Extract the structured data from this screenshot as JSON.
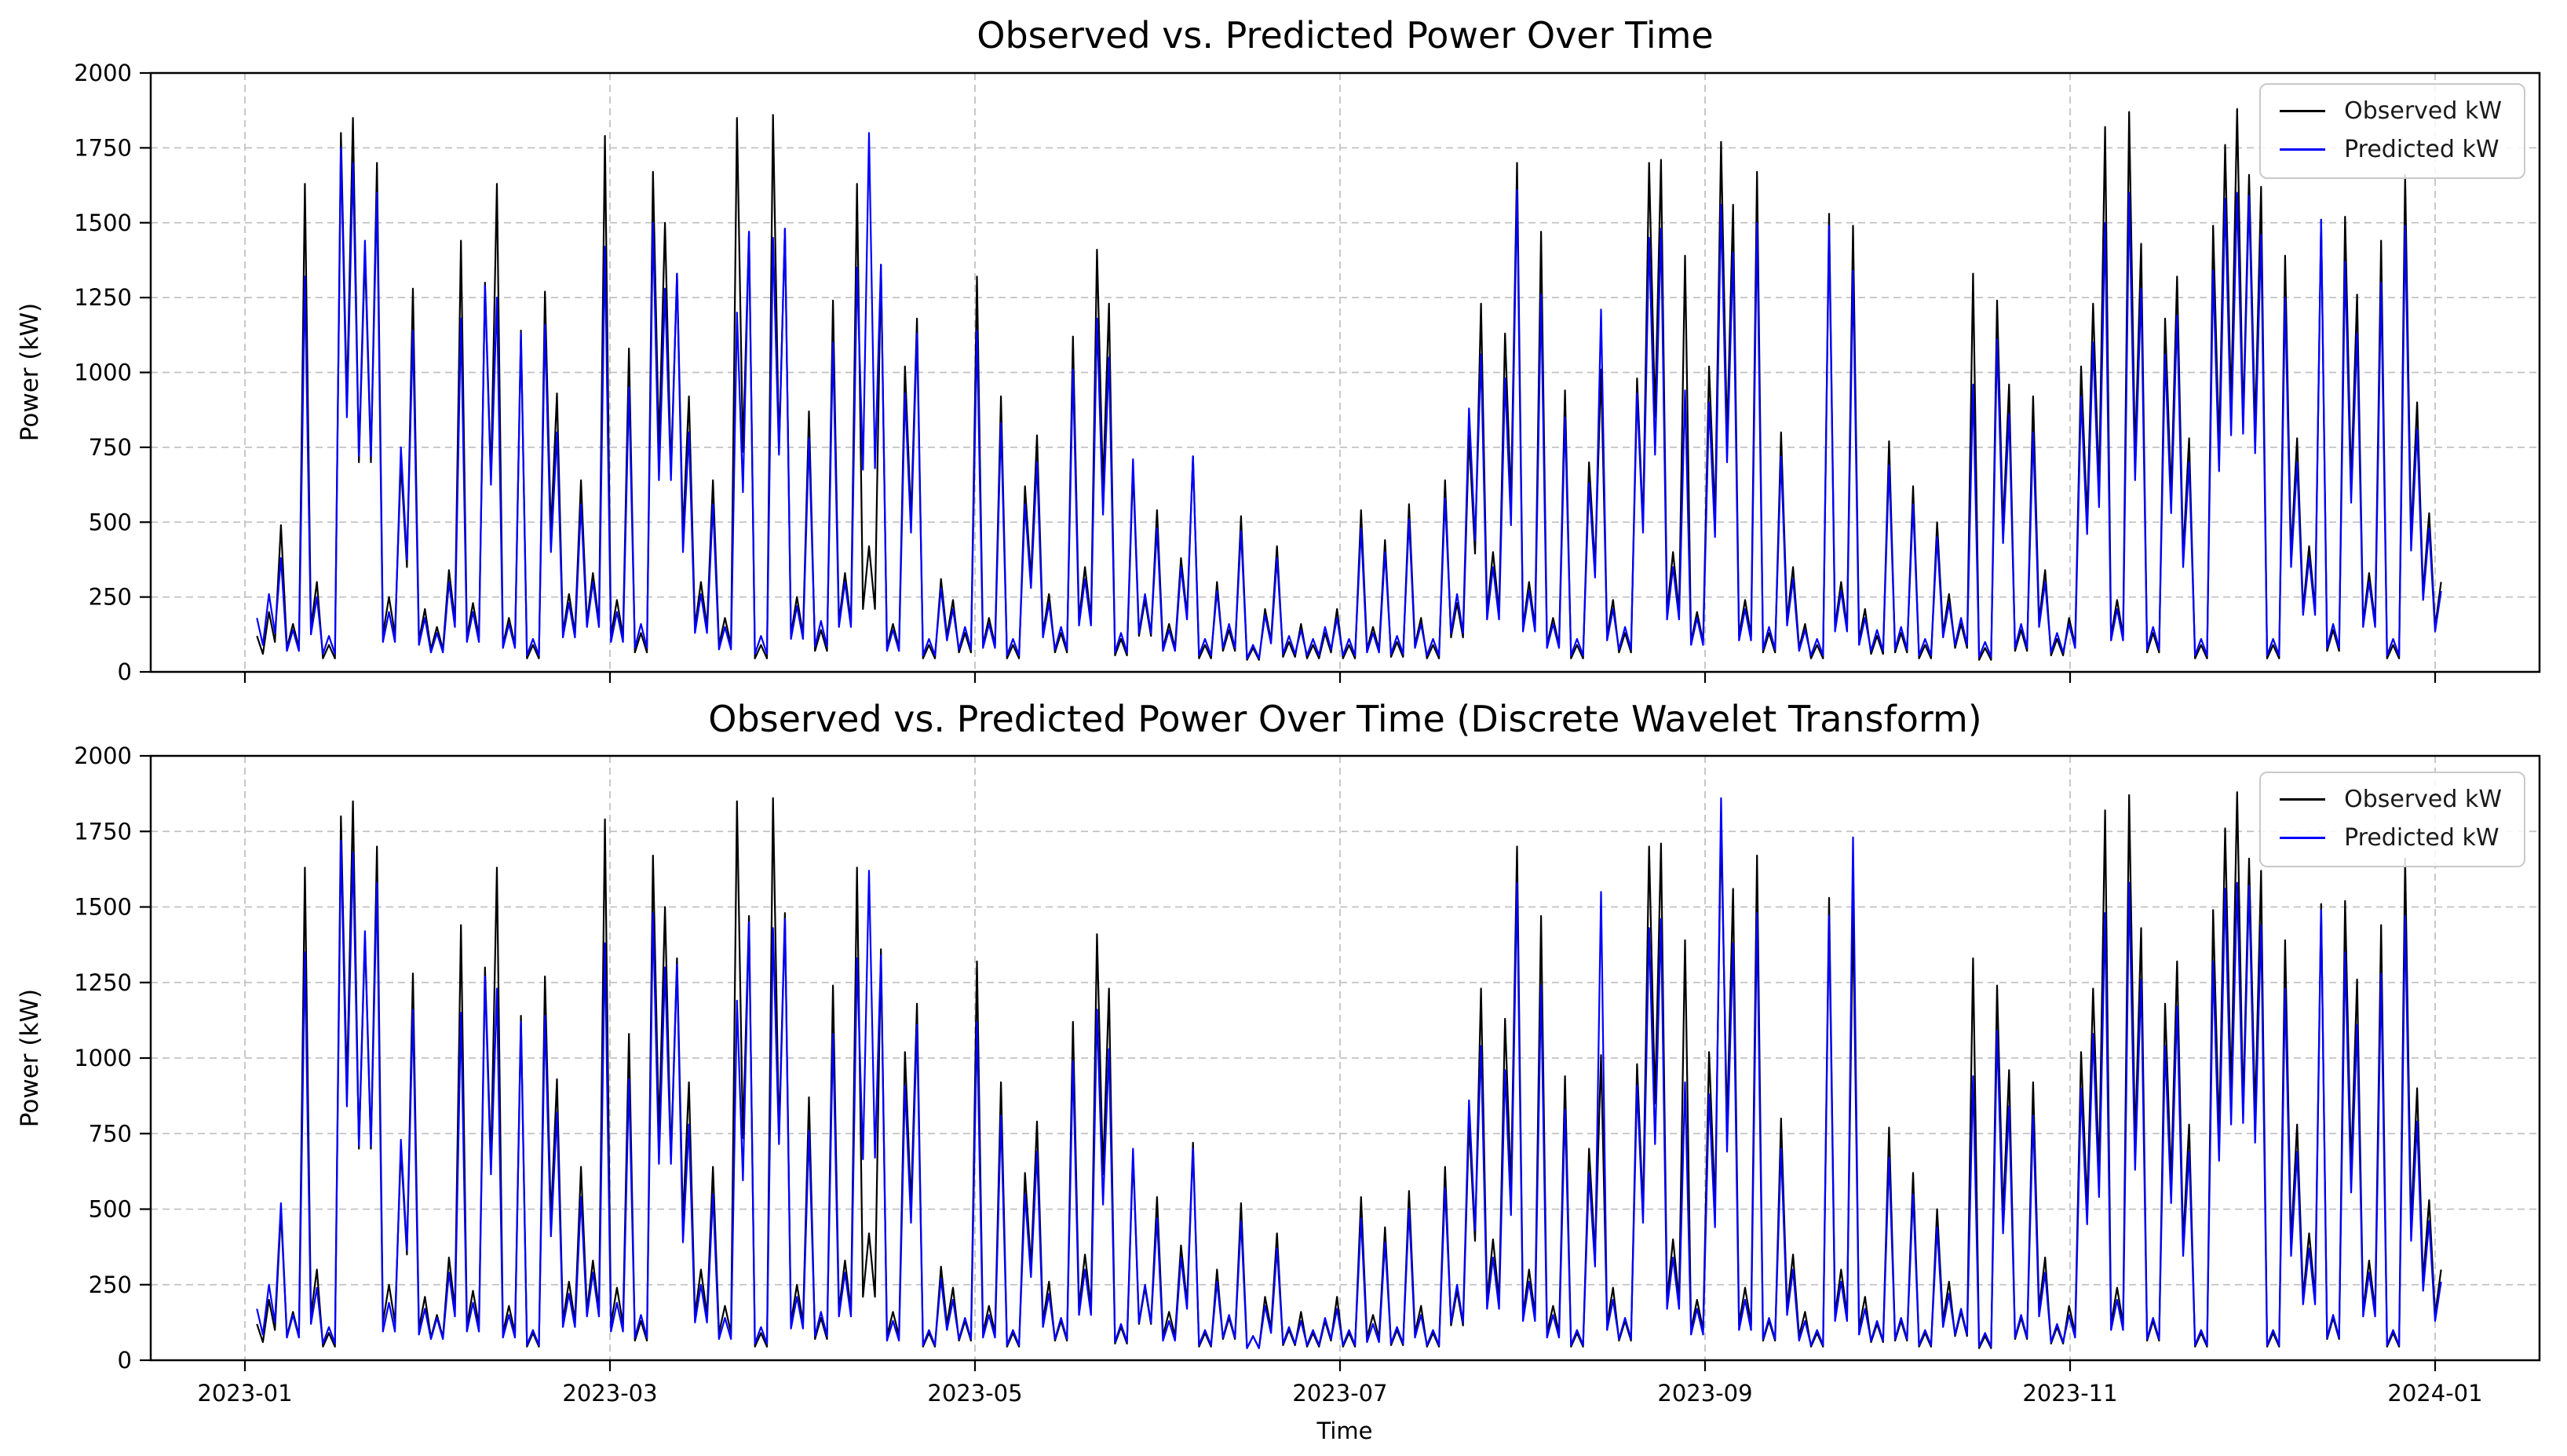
{
  "colors": {
    "background": "#ffffff",
    "observed": "#000000",
    "predicted": "#0000ff",
    "grid": "#c2c2c2",
    "axis": "#000000",
    "legend_border": "#c9c9c9"
  },
  "chart_data": [
    {
      "type": "line",
      "title": "Observed vs. Predicted Power Over Time",
      "ylabel": "Power (kW)",
      "xlabel": "",
      "ylim": [
        0,
        2000
      ],
      "y_ticks": [
        0,
        250,
        500,
        750,
        1000,
        1250,
        1500,
        1750,
        2000
      ],
      "x_tick_labels": [
        "2023-01",
        "2023-03",
        "2023-05",
        "2023-07",
        "2023-09",
        "2023-11",
        "2024-01"
      ],
      "x_tick_labels_visible": false,
      "grid": true,
      "legend_position": "upper right",
      "start_day": 2,
      "sample_interval_days": 2,
      "series": [
        {
          "name": "Observed kW",
          "color": "#000000",
          "values": [
            120,
            200,
            490,
            160,
            1630,
            300,
            90,
            1800,
            1850,
            1400,
            1700,
            250,
            700,
            1280,
            210,
            150,
            340,
            1440,
            230,
            1300,
            1630,
            180,
            1140,
            90,
            1270,
            930,
            260,
            640,
            330,
            1790,
            240,
            1080,
            130,
            1670,
            1500,
            1330,
            920,
            300,
            640,
            180,
            1850,
            1470,
            90,
            1860,
            1480,
            250,
            870,
            140,
            1240,
            330,
            1630,
            420,
            1360,
            160,
            1020,
            1180,
            90,
            310,
            240,
            130,
            1320,
            180,
            920,
            90,
            620,
            790,
            260,
            130,
            1120,
            350,
            1410,
            1230,
            110,
            680,
            240,
            540,
            160,
            380,
            720,
            90,
            300,
            140,
            520,
            80,
            210,
            420,
            100,
            160,
            90,
            130,
            210,
            90,
            540,
            150,
            440,
            100,
            560,
            180,
            90,
            640,
            230,
            790,
            1230,
            400,
            1130,
            1700,
            300,
            1470,
            180,
            940,
            90,
            700,
            1010,
            240,
            130,
            980,
            1700,
            1710,
            400,
            1390,
            200,
            1020,
            1770,
            1560,
            240,
            1670,
            130,
            800,
            350,
            160,
            90,
            1530,
            300,
            1490,
            210,
            120,
            770,
            130,
            620,
            90,
            500,
            260,
            160,
            1330,
            80,
            1240,
            960,
            140,
            920,
            340,
            110,
            180,
            1020,
            1230,
            1820,
            240,
            1870,
            1430,
            130,
            1180,
            1320,
            780,
            90,
            1490,
            1760,
            1880,
            1660,
            1620,
            90,
            1390,
            780,
            420,
            1510,
            140,
            1520,
            1260,
            330,
            1440,
            90,
            1660,
            900,
            530,
            300
          ]
        },
        {
          "name": "Predicted kW",
          "color": "#0000ff",
          "values": [
            180,
            260,
            380,
            140,
            1320,
            250,
            120,
            1750,
            1700,
            1440,
            1600,
            200,
            750,
            1140,
            180,
            130,
            300,
            1180,
            200,
            1290,
            1250,
            160,
            1130,
            110,
            1160,
            800,
            230,
            560,
            300,
            1420,
            200,
            950,
            160,
            1500,
            1280,
            1330,
            800,
            260,
            560,
            150,
            1200,
            1470,
            120,
            1450,
            1480,
            220,
            780,
            170,
            1100,
            300,
            1350,
            1800,
            1360,
            140,
            930,
            1130,
            110,
            280,
            210,
            150,
            1140,
            160,
            830,
            110,
            560,
            700,
            230,
            150,
            1010,
            310,
            1180,
            1050,
            130,
            710,
            260,
            480,
            140,
            350,
            720,
            110,
            270,
            160,
            470,
            90,
            190,
            380,
            120,
            140,
            110,
            150,
            180,
            110,
            480,
            130,
            400,
            120,
            510,
            160,
            110,
            580,
            260,
            880,
            1060,
            350,
            980,
            1610,
            270,
            1260,
            160,
            850,
            110,
            630,
            1210,
            210,
            150,
            930,
            1450,
            1480,
            350,
            940,
            180,
            900,
            1560,
            1400,
            210,
            1500,
            150,
            720,
            310,
            140,
            110,
            1490,
            270,
            1340,
            180,
            140,
            690,
            150,
            560,
            110,
            450,
            230,
            180,
            960,
            100,
            1110,
            860,
            160,
            800,
            300,
            130,
            160,
            920,
            1100,
            1500,
            210,
            1600,
            1280,
            150,
            1060,
            1190,
            700,
            110,
            1340,
            1580,
            1600,
            1590,
            1460,
            110,
            1250,
            700,
            380,
            1510,
            160,
            1370,
            1130,
            300,
            1300,
            110,
            1490,
            810,
            480,
            270
          ]
        }
      ]
    },
    {
      "type": "line",
      "title": "Observed vs. Predicted Power Over Time (Discrete Wavelet Transform)",
      "ylabel": "Power (kW)",
      "xlabel": "Time",
      "ylim": [
        0,
        2000
      ],
      "y_ticks": [
        0,
        250,
        500,
        750,
        1000,
        1250,
        1500,
        1750,
        2000
      ],
      "x_tick_labels": [
        "2023-01",
        "2023-03",
        "2023-05",
        "2023-07",
        "2023-09",
        "2023-11",
        "2024-01"
      ],
      "x_tick_labels_visible": true,
      "grid": true,
      "legend_position": "upper right",
      "start_day": 2,
      "sample_interval_days": 2,
      "series": [
        {
          "name": "Observed kW",
          "color": "#000000",
          "values": [
            120,
            200,
            490,
            160,
            1630,
            300,
            90,
            1800,
            1850,
            1400,
            1700,
            250,
            700,
            1280,
            210,
            150,
            340,
            1440,
            230,
            1300,
            1630,
            180,
            1140,
            90,
            1270,
            930,
            260,
            640,
            330,
            1790,
            240,
            1080,
            130,
            1670,
            1500,
            1330,
            920,
            300,
            640,
            180,
            1850,
            1470,
            90,
            1860,
            1480,
            250,
            870,
            140,
            1240,
            330,
            1630,
            420,
            1360,
            160,
            1020,
            1180,
            90,
            310,
            240,
            130,
            1320,
            180,
            920,
            90,
            620,
            790,
            260,
            130,
            1120,
            350,
            1410,
            1230,
            110,
            680,
            240,
            540,
            160,
            380,
            720,
            90,
            300,
            140,
            520,
            80,
            210,
            420,
            100,
            160,
            90,
            130,
            210,
            90,
            540,
            150,
            440,
            100,
            560,
            180,
            90,
            640,
            230,
            790,
            1230,
            400,
            1130,
            1700,
            300,
            1470,
            180,
            940,
            90,
            700,
            1010,
            240,
            130,
            980,
            1700,
            1710,
            400,
            1390,
            200,
            1020,
            1770,
            1560,
            240,
            1670,
            130,
            800,
            350,
            160,
            90,
            1530,
            300,
            1490,
            210,
            120,
            770,
            130,
            620,
            90,
            500,
            260,
            160,
            1330,
            80,
            1240,
            960,
            140,
            920,
            340,
            110,
            180,
            1020,
            1230,
            1820,
            240,
            1870,
            1430,
            130,
            1180,
            1320,
            780,
            90,
            1490,
            1760,
            1880,
            1660,
            1620,
            90,
            1390,
            780,
            420,
            1510,
            140,
            1520,
            1260,
            330,
            1440,
            90,
            1660,
            900,
            530,
            300
          ]
        },
        {
          "name": "Predicted kW",
          "color": "#0000ff",
          "values": [
            170,
            250,
            520,
            150,
            1350,
            240,
            110,
            1720,
            1680,
            1420,
            1580,
            190,
            730,
            1160,
            170,
            140,
            290,
            1150,
            190,
            1270,
            1230,
            150,
            1120,
            100,
            1140,
            820,
            220,
            540,
            290,
            1380,
            190,
            930,
            150,
            1480,
            1300,
            1310,
            780,
            250,
            550,
            140,
            1190,
            1450,
            110,
            1430,
            1460,
            210,
            760,
            160,
            1080,
            290,
            1330,
            1620,
            1340,
            130,
            910,
            1110,
            100,
            270,
            200,
            140,
            1120,
            150,
            810,
            100,
            550,
            690,
            220,
            140,
            990,
            300,
            1160,
            1030,
            120,
            700,
            250,
            470,
            130,
            340,
            700,
            100,
            260,
            150,
            460,
            80,
            180,
            370,
            110,
            130,
            100,
            140,
            170,
            100,
            470,
            120,
            390,
            110,
            500,
            150,
            100,
            570,
            250,
            860,
            1040,
            340,
            960,
            1580,
            260,
            1240,
            150,
            830,
            100,
            620,
            1550,
            200,
            140,
            910,
            1430,
            1460,
            340,
            920,
            170,
            880,
            1860,
            1380,
            200,
            1480,
            140,
            700,
            300,
            130,
            100,
            1470,
            260,
            1730,
            170,
            130,
            670,
            140,
            550,
            100,
            440,
            220,
            170,
            940,
            90,
            1090,
            840,
            150,
            810,
            290,
            120,
            150,
            900,
            1080,
            1480,
            200,
            1580,
            1260,
            140,
            1040,
            1170,
            690,
            100,
            1320,
            1560,
            1580,
            1570,
            1440,
            100,
            1230,
            690,
            370,
            1490,
            150,
            1350,
            1110,
            290,
            1280,
            100,
            1470,
            790,
            460,
            260
          ]
        }
      ]
    }
  ]
}
